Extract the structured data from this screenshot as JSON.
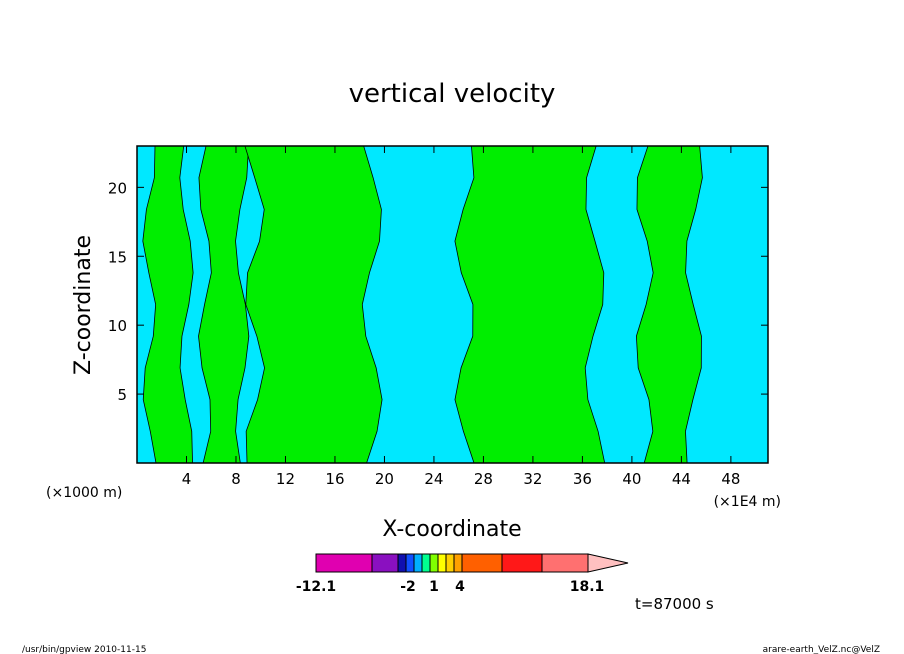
{
  "chart_data": {
    "type": "heatmap",
    "title": "vertical velocity",
    "xlabel": "X-coordinate",
    "ylabel": "Z-coordinate",
    "x_unit_left": "(×1000 m)",
    "x_unit_right": "(×1E4 m)",
    "xlim": [
      0,
      51
    ],
    "ylim": [
      0,
      23
    ],
    "x_ticks": [
      4,
      8,
      12,
      16,
      20,
      24,
      28,
      32,
      36,
      40,
      44,
      48
    ],
    "y_ticks": [
      5,
      10,
      15,
      20
    ],
    "grid": false,
    "regions_note": "two dominant shaded classes",
    "colors": {
      "cyan_region": "#00e8ff",
      "green_region": "#00ee00",
      "contour": "#000000"
    },
    "bands": [
      {
        "x0": 0.0,
        "x1": 1.0,
        "class": "cyan"
      },
      {
        "x0": 1.0,
        "x1": 4.0,
        "class": "green"
      },
      {
        "x0": 4.0,
        "x1": 5.5,
        "class": "cyan"
      },
      {
        "x0": 5.5,
        "x1": 8.5,
        "class": "green"
      },
      {
        "x0": 8.5,
        "x1": 9.5,
        "class": "cyan"
      },
      {
        "x0": 9.5,
        "x1": 19.0,
        "class": "green"
      },
      {
        "x0": 19.0,
        "x1": 26.5,
        "class": "cyan"
      },
      {
        "x0": 26.5,
        "x1": 37.0,
        "class": "green"
      },
      {
        "x0": 37.0,
        "x1": 41.0,
        "class": "cyan"
      },
      {
        "x0": 41.0,
        "x1": 45.0,
        "class": "green"
      },
      {
        "x0": 45.0,
        "x1": 51.0,
        "class": "cyan"
      }
    ],
    "colorbar": {
      "min_label": "-12.1",
      "max_label": "18.1",
      "labels": [
        "-2",
        "1",
        "4"
      ],
      "colors": [
        "#e000b0",
        "#8a10c0",
        "#1010b0",
        "#1050ff",
        "#00b0ff",
        "#00ff90",
        "#80ff00",
        "#ffff00",
        "#ffd000",
        "#ffa000",
        "#ff6000",
        "#ff1818",
        "#ff7070",
        "#ffc0c0"
      ]
    },
    "annotation": "t=87000 s",
    "footer_left": "/usr/bin/gpview  2010-11-15",
    "footer_right": "arare-earth_VelZ.nc@VelZ"
  }
}
